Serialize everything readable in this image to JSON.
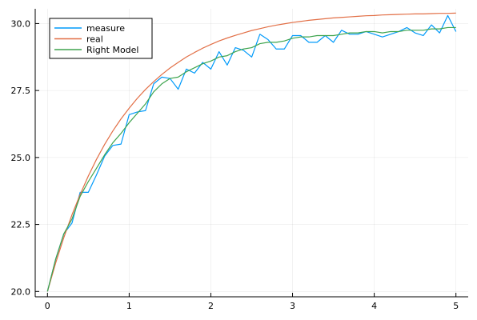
{
  "chart_data": {
    "type": "line",
    "title": "",
    "xlabel": "",
    "ylabel": "",
    "xlim": [
      -0.15,
      5.15
    ],
    "ylim": [
      19.8,
      30.55
    ],
    "xticks": [
      0,
      1,
      2,
      3,
      4,
      5
    ],
    "xtick_labels": [
      "0",
      "1",
      "2",
      "3",
      "4",
      "5"
    ],
    "yticks": [
      20.0,
      22.5,
      25.0,
      27.5,
      30.0
    ],
    "ytick_labels": [
      "20.0",
      "22.5",
      "25.0",
      "27.5",
      "30.0"
    ],
    "grid": true,
    "legend_position": "top-left",
    "series": [
      {
        "name": "measure",
        "color": "#009AFA",
        "x": [
          0.0,
          0.1,
          0.2,
          0.3,
          0.4,
          0.5,
          0.6,
          0.7,
          0.8,
          0.9,
          1.0,
          1.1,
          1.2,
          1.3,
          1.4,
          1.5,
          1.6,
          1.7,
          1.8,
          1.9,
          2.0,
          2.1,
          2.2,
          2.3,
          2.4,
          2.5,
          2.6,
          2.7,
          2.8,
          2.9,
          3.0,
          3.1,
          3.2,
          3.3,
          3.4,
          3.5,
          3.6,
          3.7,
          3.8,
          3.9,
          4.0,
          4.1,
          4.2,
          4.3,
          4.4,
          4.5,
          4.6,
          4.7,
          4.8,
          4.9,
          5.0
        ],
        "y": [
          20.0,
          21.2,
          22.15,
          22.55,
          23.7,
          23.7,
          24.35,
          25.05,
          25.45,
          25.5,
          26.6,
          26.7,
          26.75,
          27.75,
          28.0,
          27.95,
          27.55,
          28.3,
          28.15,
          28.55,
          28.3,
          28.95,
          28.45,
          29.1,
          29.0,
          28.75,
          29.6,
          29.4,
          29.05,
          29.05,
          29.55,
          29.55,
          29.3,
          29.3,
          29.55,
          29.3,
          29.75,
          29.6,
          29.6,
          29.7,
          29.6,
          29.5,
          29.6,
          29.7,
          29.85,
          29.65,
          29.55,
          29.95,
          29.65,
          30.3,
          29.7
        ]
      },
      {
        "name": "real",
        "color": "#E26F46",
        "x": [
          0.0,
          0.1,
          0.2,
          0.3,
          0.4,
          0.5,
          0.6,
          0.7,
          0.8,
          0.9,
          1.0,
          1.1,
          1.2,
          1.3,
          1.4,
          1.5,
          1.6,
          1.7,
          1.8,
          1.9,
          2.0,
          2.1,
          2.2,
          2.3,
          2.4,
          2.5,
          2.6,
          2.7,
          2.8,
          2.9,
          3.0,
          3.1,
          3.2,
          3.3,
          3.4,
          3.5,
          3.6,
          3.7,
          3.8,
          3.9,
          4.0,
          4.1,
          4.2,
          4.3,
          4.4,
          4.5,
          4.6,
          4.7,
          4.8,
          4.9,
          5.0
        ],
        "y": [
          20.0,
          21.06,
          22.01,
          22.86,
          23.62,
          24.31,
          24.93,
          25.49,
          25.99,
          26.44,
          26.84,
          27.21,
          27.54,
          27.83,
          28.1,
          28.34,
          28.55,
          28.75,
          28.92,
          29.08,
          29.22,
          29.35,
          29.46,
          29.56,
          29.65,
          29.74,
          29.81,
          29.88,
          29.94,
          29.99,
          30.04,
          30.08,
          30.12,
          30.15,
          30.18,
          30.21,
          30.23,
          30.25,
          30.27,
          30.29,
          30.3,
          30.32,
          30.33,
          30.34,
          30.35,
          30.36,
          30.36,
          30.37,
          30.38,
          30.38,
          30.39
        ]
      },
      {
        "name": "Right Model",
        "color": "#3EA44E",
        "x": [
          0.0,
          0.1,
          0.2,
          0.3,
          0.4,
          0.5,
          0.6,
          0.7,
          0.8,
          0.9,
          1.0,
          1.1,
          1.2,
          1.3,
          1.4,
          1.5,
          1.6,
          1.7,
          1.8,
          1.9,
          2.0,
          2.1,
          2.2,
          2.3,
          2.4,
          2.5,
          2.6,
          2.7,
          2.8,
          2.9,
          3.0,
          3.1,
          3.2,
          3.3,
          3.4,
          3.5,
          3.6,
          3.7,
          3.8,
          3.9,
          4.0,
          4.1,
          4.2,
          4.3,
          4.4,
          4.5,
          4.6,
          4.7,
          4.8,
          4.9,
          5.0
        ],
        "y": [
          20.0,
          21.2,
          22.15,
          22.7,
          23.55,
          24.1,
          24.6,
          25.1,
          25.55,
          25.9,
          26.3,
          26.65,
          27.0,
          27.45,
          27.75,
          27.95,
          28.0,
          28.2,
          28.35,
          28.5,
          28.6,
          28.75,
          28.8,
          28.95,
          29.05,
          29.1,
          29.25,
          29.3,
          29.3,
          29.35,
          29.45,
          29.5,
          29.5,
          29.55,
          29.55,
          29.55,
          29.6,
          29.65,
          29.65,
          29.7,
          29.7,
          29.65,
          29.7,
          29.7,
          29.75,
          29.75,
          29.75,
          29.8,
          29.8,
          29.85,
          29.85
        ]
      }
    ]
  }
}
